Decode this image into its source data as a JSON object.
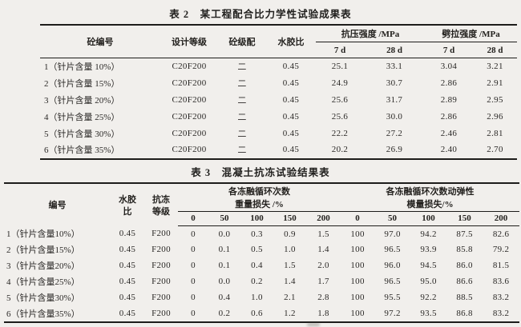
{
  "table2": {
    "title": "表 2　某工程配合比力学性试验成果表",
    "headers": {
      "col1": "砼编号",
      "col2": "设计等级",
      "col3": "砼级配",
      "col4": "水胶比",
      "group1": "抗压强度 /MPa",
      "group2": "劈拉强度 /MPa",
      "sub": [
        "7 d",
        "28 d",
        "7 d",
        "28 d"
      ]
    },
    "rows": [
      [
        "1（针片含量 10%）",
        "C20F200",
        "二",
        "0.45",
        "25.1",
        "33.1",
        "3.04",
        "3.21"
      ],
      [
        "2（针片含量 15%）",
        "C20F200",
        "二",
        "0.45",
        "24.9",
        "30.7",
        "2.86",
        "2.91"
      ],
      [
        "3（针片含量 20%）",
        "C20F200",
        "二",
        "0.45",
        "25.6",
        "31.7",
        "2.89",
        "2.95"
      ],
      [
        "4（针片含量 25%）",
        "C20F200",
        "二",
        "0.45",
        "25.6",
        "30.0",
        "2.86",
        "2.96"
      ],
      [
        "5（针片含量 30%）",
        "C20F200",
        "二",
        "0.45",
        "22.2",
        "27.2",
        "2.46",
        "2.81"
      ],
      [
        "6（针片含量 35%）",
        "C20F200",
        "二",
        "0.45",
        "20.2",
        "26.9",
        "2.40",
        "2.70"
      ]
    ]
  },
  "table3": {
    "title": "表 3　混凝土抗冻试验结果表",
    "headers": {
      "col1": "编号",
      "col2": "水胶\n比",
      "col3": "抗冻\n等级",
      "group1": "各冻融循环次数\n重量损失 /%",
      "group2": "各冻融循环次数动弹性\n模量损失/%",
      "sub": [
        "0",
        "50",
        "100",
        "150",
        "200",
        "0",
        "50",
        "100",
        "150",
        "200"
      ]
    },
    "rows": [
      [
        "1（针片含量10%）",
        "0.45",
        "F200",
        "0",
        "0.0",
        "0.3",
        "0.9",
        "1.5",
        "100",
        "97.0",
        "94.2",
        "87.5",
        "82.6"
      ],
      [
        "2（针片含量15%）",
        "0.45",
        "F200",
        "0",
        "0.1",
        "0.5",
        "1.0",
        "1.4",
        "100",
        "96.5",
        "93.9",
        "85.8",
        "79.2"
      ],
      [
        "3（针片含量20%）",
        "0.45",
        "F200",
        "0",
        "0.1",
        "0.4",
        "1.5",
        "2.0",
        "100",
        "96.0",
        "94.5",
        "86.0",
        "81.5"
      ],
      [
        "4（针片含量25%）",
        "0.45",
        "F200",
        "0",
        "0.0",
        "0.2",
        "1.4",
        "1.7",
        "100",
        "96.5",
        "95.0",
        "86.6",
        "83.6"
      ],
      [
        "5（针片含量30%）",
        "0.45",
        "F200",
        "0",
        "0.4",
        "1.0",
        "2.1",
        "2.8",
        "100",
        "95.5",
        "92.2",
        "88.5",
        "83.2"
      ],
      [
        "6（针片含量35%）",
        "0.45",
        "F200",
        "0",
        "0.2",
        "0.6",
        "1.2",
        "1.8",
        "100",
        "97.2",
        "93.5",
        "86.8",
        "83.2"
      ]
    ]
  }
}
